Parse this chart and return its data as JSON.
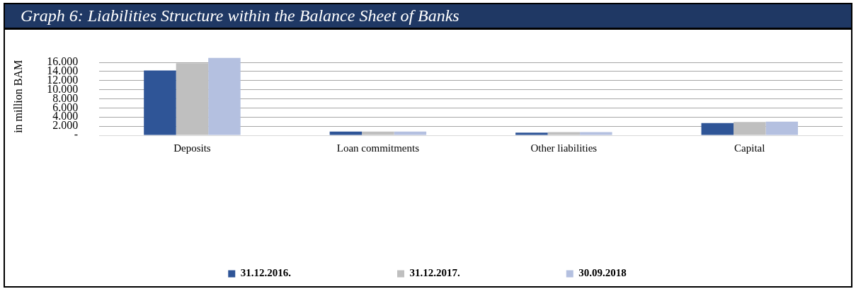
{
  "chart_data": {
    "type": "bar",
    "title": "Graph 6: Liabilities Structure within the Balance Sheet of Banks",
    "ylabel": "in million BAM",
    "categories": [
      "Deposits",
      "Loan commitments",
      "Other liabilities",
      "Capital"
    ],
    "series": [
      {
        "name": "31.12.2016.",
        "color": "#2f5597",
        "values": [
          14200,
          800,
          600,
          2700
        ]
      },
      {
        "name": "31.12.2017.",
        "color": "#bfbfbf",
        "values": [
          15800,
          800,
          700,
          2900
        ]
      },
      {
        "name": "30.09.2018",
        "color": "#b4c0e0",
        "values": [
          17000,
          800,
          700,
          3000
        ]
      }
    ],
    "ylim": [
      0,
      17000
    ],
    "yticks": [
      {
        "value": 0,
        "label": "-"
      },
      {
        "value": 2000,
        "label": "2.000"
      },
      {
        "value": 4000,
        "label": "4.000"
      },
      {
        "value": 6000,
        "label": "6.000"
      },
      {
        "value": 8000,
        "label": "8.000"
      },
      {
        "value": 10000,
        "label": "10.000"
      },
      {
        "value": 12000,
        "label": "12.000"
      },
      {
        "value": 14000,
        "label": "14.000"
      },
      {
        "value": 16000,
        "label": "16.000"
      }
    ],
    "grid": "y",
    "legend": "bottom"
  }
}
